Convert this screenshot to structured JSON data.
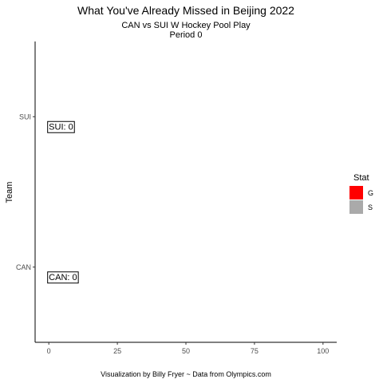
{
  "chart_data": {
    "type": "bar",
    "orientation": "horizontal",
    "title": "What You've Already Missed in Beijing 2022",
    "subtitle_line1": "CAN vs SUI W Hockey Pool Play",
    "subtitle_line2": "Period 0",
    "xlabel": "",
    "ylabel": "Team",
    "categories": [
      "CAN",
      "SUI"
    ],
    "series": [
      {
        "name": "G",
        "values": [
          0,
          0
        ],
        "color": "#ff0000"
      },
      {
        "name": "S",
        "values": [
          0,
          0
        ],
        "color": "#aaaaaa"
      }
    ],
    "bar_labels": [
      "CAN: 0",
      "SUI: 0"
    ],
    "x_ticks": [
      0,
      25,
      50,
      75,
      100
    ],
    "x_tick_labels": [
      "0",
      "25",
      "50",
      "75",
      "100"
    ],
    "xlim": [
      -5,
      105
    ],
    "legend": {
      "title": "Stat",
      "entries": [
        "G",
        "S"
      ],
      "placement": "right"
    },
    "grid": false,
    "caption": "Visualization by Billy Fryer ~ Data from Olympics.com"
  }
}
